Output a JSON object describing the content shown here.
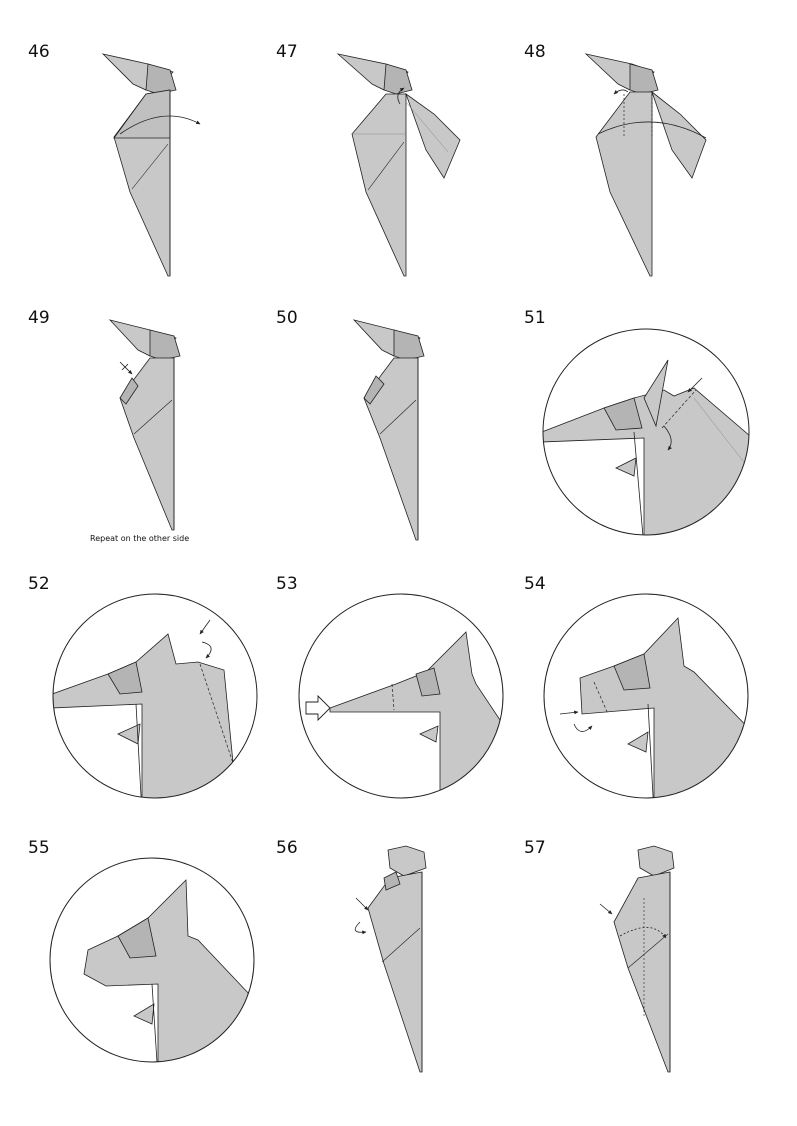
{
  "steps": [
    {
      "number": "46"
    },
    {
      "number": "47"
    },
    {
      "number": "48"
    },
    {
      "number": "49"
    },
    {
      "number": "50"
    },
    {
      "number": "51"
    },
    {
      "number": "52"
    },
    {
      "number": "53"
    },
    {
      "number": "54"
    },
    {
      "number": "55"
    },
    {
      "number": "56"
    },
    {
      "number": "57"
    }
  ],
  "notes": {
    "step49": "Repeat on the other side"
  },
  "colors": {
    "paper": "#c8c8c8",
    "paper_dark": "#b4b4b4",
    "line": "#222222"
  }
}
